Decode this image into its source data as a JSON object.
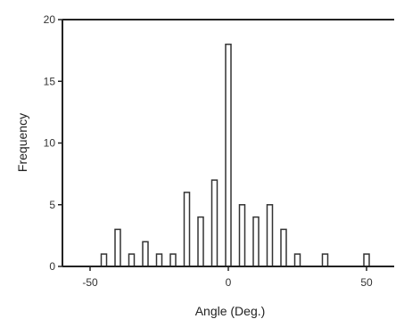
{
  "chart_data": {
    "type": "bar",
    "title": "",
    "xlabel": "Angle (Deg.)",
    "ylabel": "Frequency",
    "xlim": [
      -60,
      60
    ],
    "ylim": [
      0,
      20
    ],
    "xticks": [
      -50,
      0,
      50
    ],
    "xtick_labels": [
      "-50",
      "0",
      "50"
    ],
    "yticks": [
      0,
      5,
      10,
      15,
      20
    ],
    "ytick_labels": [
      "0",
      "5",
      "10",
      "15",
      "20"
    ],
    "bin_width": 5,
    "grid": false,
    "legend": "none",
    "bar_fill": "#ffffff",
    "bar_stroke": "#333333",
    "x": [
      -45,
      -40,
      -35,
      -30,
      -25,
      -20,
      -15,
      -10,
      -5,
      0,
      5,
      10,
      15,
      20,
      25,
      35,
      50
    ],
    "values": [
      1,
      3,
      1,
      2,
      1,
      1,
      6,
      4,
      7,
      18,
      5,
      4,
      5,
      3,
      1,
      1,
      1
    ]
  }
}
